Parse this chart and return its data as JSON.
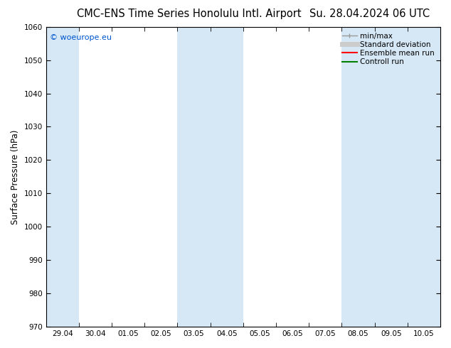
{
  "title_left": "CMC-ENS Time Series Honolulu Intl. Airport",
  "title_right": "Su. 28.04.2024 06 UTC",
  "ylabel": "Surface Pressure (hPa)",
  "ylim": [
    970,
    1060
  ],
  "yticks": [
    970,
    980,
    990,
    1000,
    1010,
    1020,
    1030,
    1040,
    1050,
    1060
  ],
  "x_labels": [
    "29.04",
    "30.04",
    "01.05",
    "02.05",
    "03.05",
    "04.05",
    "05.05",
    "06.05",
    "07.05",
    "08.05",
    "09.05",
    "10.05"
  ],
  "watermark": "© woeurope.eu",
  "shaded_color": "#d6e8f5",
  "shaded_ranges": [
    [
      0,
      1
    ],
    [
      4,
      6
    ],
    [
      9,
      12
    ]
  ],
  "legend_items": [
    {
      "label": "min/max",
      "color": "#999999",
      "lw": 1.2,
      "style": "line_with_caps"
    },
    {
      "label": "Standard deviation",
      "color": "#cccccc",
      "lw": 5,
      "style": "thick"
    },
    {
      "label": "Ensemble mean run",
      "color": "#ff0000",
      "lw": 1.5,
      "style": "line"
    },
    {
      "label": "Controll run",
      "color": "#008000",
      "lw": 1.5,
      "style": "line"
    }
  ],
  "bg_color": "#ffffff",
  "plot_bg_color": "#ffffff",
  "title_fontsize": 10.5,
  "tick_fontsize": 7.5,
  "ylabel_fontsize": 8.5,
  "watermark_fontsize": 8,
  "legend_fontsize": 7.5
}
